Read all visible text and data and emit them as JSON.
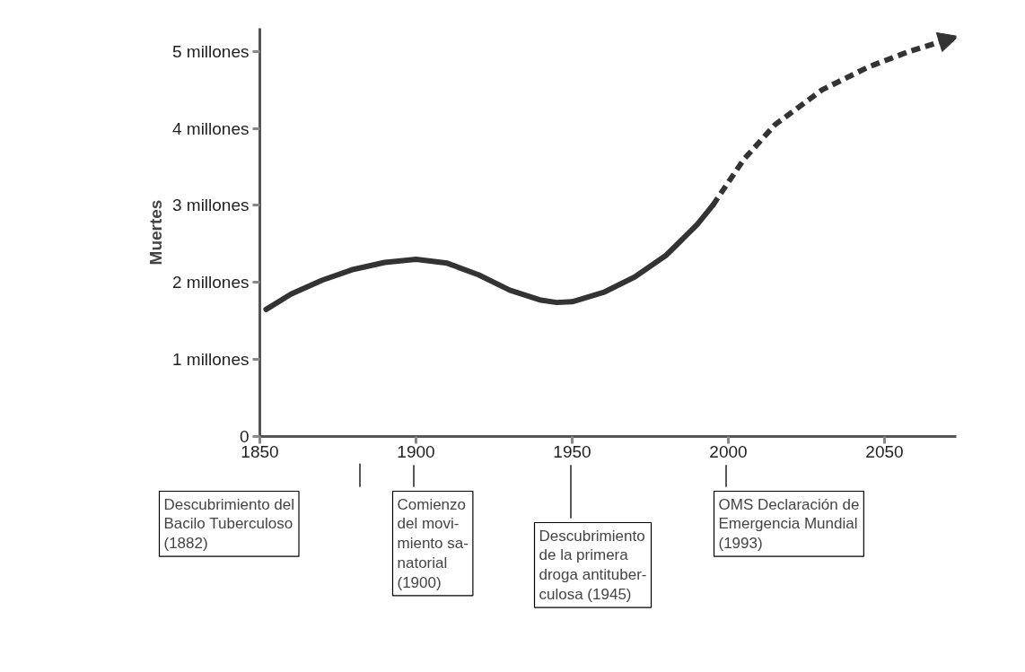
{
  "chart_data": {
    "type": "line",
    "ylabel": "Muertes",
    "xlim": [
      1850,
      2073
    ],
    "xticks": [
      1850,
      1900,
      1950,
      2000,
      2050
    ],
    "ylim": [
      0,
      5.3
    ],
    "yticks": [
      0,
      {
        "value": 1,
        "label": "1 millones"
      },
      {
        "value": 2,
        "label": "2 millones"
      },
      {
        "value": 3,
        "label": "3 millones"
      },
      {
        "value": 4,
        "label": "4 millones"
      },
      {
        "value": 5,
        "label": "5 millones"
      }
    ],
    "grid": false,
    "marker": "none",
    "series": [
      {
        "color": "#333333",
        "line_style": "solid",
        "x": [
          1852,
          1860,
          1870,
          1880,
          1890,
          1900,
          1910,
          1920,
          1930,
          1940,
          1945,
          1950,
          1960,
          1970,
          1980,
          1990,
          1995
        ],
        "values": [
          1.65,
          1.85,
          2.03,
          2.17,
          2.26,
          2.3,
          2.25,
          2.1,
          1.9,
          1.77,
          1.74,
          1.75,
          1.87,
          2.07,
          2.35,
          2.75,
          3.0
        ]
      },
      {
        "color": "#333333",
        "line_style": "dashed",
        "x": [
          1995,
          2005,
          2015,
          2030,
          2045,
          2058,
          2070
        ],
        "values": [
          3.0,
          3.6,
          4.05,
          4.5,
          4.8,
          5.0,
          5.15
        ]
      }
    ],
    "annotations": [
      "Descubrimiento del\nBacilo Tuberculoso\n(1882)",
      "Comienzo\ndel movi-\nmiento sa-\nnatorial\n(1900)",
      "Descubrimiento\nde la primera\ndroga antituber-\nculosa (1945)",
      "OMS Declaración de\nEmergencia Mundial\n(1993)"
    ]
  }
}
